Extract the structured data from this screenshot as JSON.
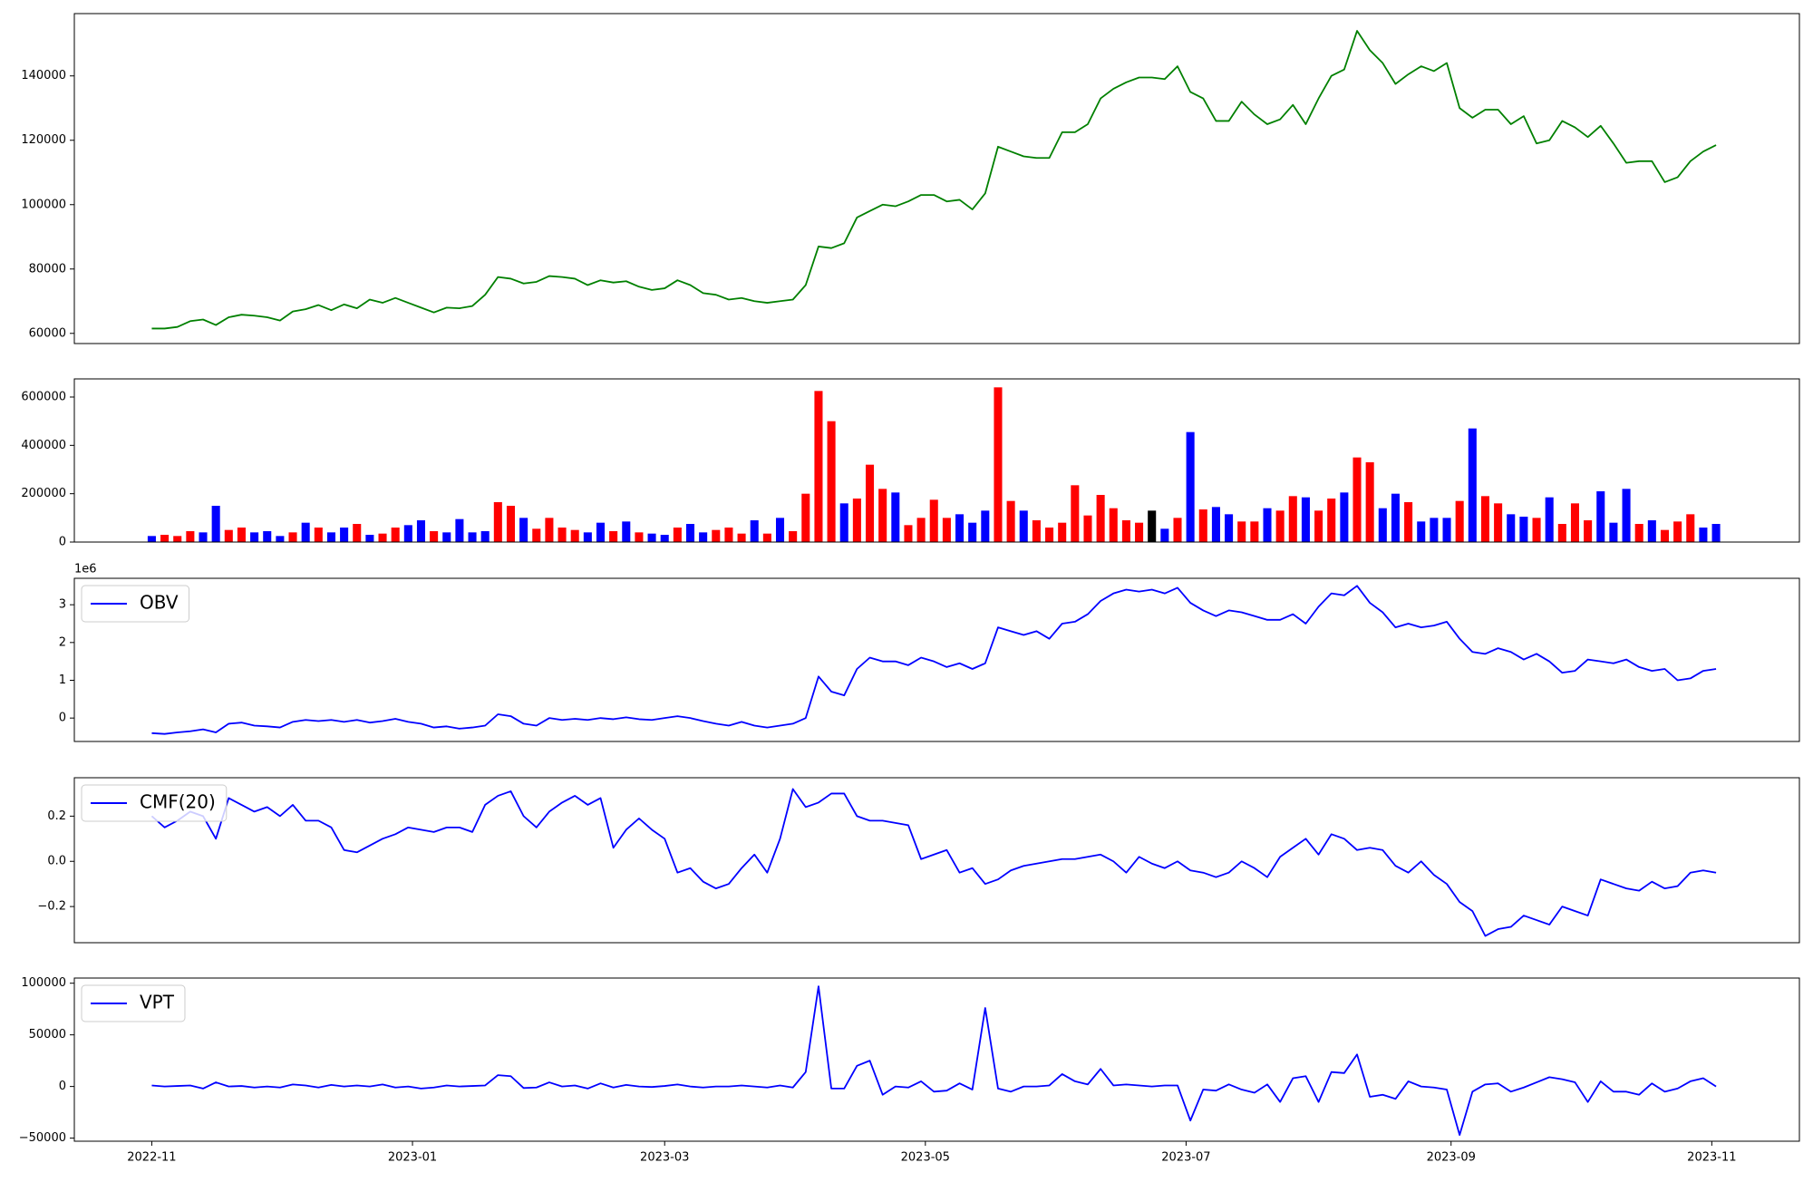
{
  "chart_data": [
    {
      "type": "line",
      "color": "#008000",
      "values": [
        61500,
        61500,
        62000,
        63800,
        64300,
        62600,
        65000,
        65800,
        65500,
        65000,
        64000,
        66800,
        67500,
        68800,
        67200,
        69000,
        67800,
        70500,
        69500,
        71000,
        69500,
        68000,
        66500,
        68000,
        67800,
        68500,
        72000,
        77500,
        77000,
        75500,
        76000,
        77800,
        77500,
        77000,
        75000,
        76500,
        75800,
        76200,
        74500,
        73500,
        74000,
        76500,
        75000,
        72500,
        72000,
        70500,
        71000,
        70000,
        69500,
        70000,
        70500,
        75000,
        87000,
        86500,
        88000,
        96000,
        98000,
        100000,
        99500,
        101000,
        103000,
        103000,
        101000,
        101500,
        98500,
        103500,
        118000,
        116500,
        115000,
        114500,
        114500,
        122500,
        122500,
        125000,
        133000,
        136000,
        138000,
        139500,
        139500,
        139000,
        143000,
        135000,
        133000,
        126000,
        126000,
        132000,
        128000,
        125000,
        126500,
        131000,
        125000,
        133000,
        140000,
        142000,
        154000,
        148000,
        144000,
        137500,
        140500,
        143000,
        141500,
        144000,
        130000,
        127000,
        129500,
        129500,
        125000,
        127500,
        119000,
        120000,
        126000,
        124000,
        121000,
        124500,
        119000,
        113000,
        113500,
        113500,
        107000,
        108500,
        113500,
        116500,
        118500
      ],
      "xlim": [
        -6.04,
        128.5
      ],
      "ylim": [
        56840,
        159360
      ],
      "yticks": [
        60000,
        80000,
        100000,
        120000,
        140000
      ]
    },
    {
      "type": "bar",
      "values": [
        25000,
        30000,
        25000,
        45000,
        40000,
        150000,
        50000,
        60000,
        40000,
        45000,
        25000,
        40000,
        80000,
        60000,
        40000,
        60000,
        75000,
        30000,
        35000,
        60000,
        70000,
        90000,
        45000,
        40000,
        95000,
        40000,
        45000,
        165000,
        150000,
        100000,
        55000,
        100000,
        60000,
        50000,
        40000,
        80000,
        45000,
        85000,
        40000,
        35000,
        30000,
        60000,
        75000,
        40000,
        50000,
        60000,
        35000,
        90000,
        35000,
        100000,
        45000,
        200000,
        625000,
        500000,
        160000,
        180000,
        320000,
        220000,
        205000,
        70000,
        100000,
        175000,
        100000,
        115000,
        80000,
        130000,
        640000,
        170000,
        130000,
        90000,
        60000,
        80000,
        235000,
        110000,
        195000,
        140000,
        90000,
        80000,
        130000,
        55000,
        100000,
        455000,
        135000,
        145000,
        115000,
        85000,
        85000,
        140000,
        130000,
        190000,
        185000,
        130000,
        180000,
        205000,
        350000,
        330000,
        140000,
        200000,
        165000,
        85000,
        100000,
        100000,
        170000,
        470000,
        190000,
        160000,
        115000,
        105000,
        100000,
        185000,
        75000,
        160000,
        90000,
        210000,
        80000,
        220000,
        75000,
        90000,
        50000,
        85000,
        115000,
        60000,
        75000
      ],
      "colors": [
        "blue",
        "red",
        "red",
        "red",
        "blue",
        "blue",
        "red",
        "red",
        "blue",
        "blue",
        "blue",
        "red",
        "blue",
        "red",
        "blue",
        "blue",
        "red",
        "blue",
        "red",
        "red",
        "blue",
        "blue",
        "red",
        "blue",
        "blue",
        "blue",
        "blue",
        "red",
        "red",
        "blue",
        "red",
        "red",
        "red",
        "red",
        "blue",
        "blue",
        "red",
        "blue",
        "red",
        "blue",
        "blue",
        "red",
        "blue",
        "blue",
        "red",
        "red",
        "red",
        "blue",
        "red",
        "blue",
        "red",
        "red",
        "red",
        "red",
        "blue",
        "red",
        "red",
        "red",
        "blue",
        "red",
        "red",
        "red",
        "red",
        "blue",
        "blue",
        "blue",
        "red",
        "red",
        "blue",
        "red",
        "red",
        "red",
        "red",
        "red",
        "red",
        "red",
        "red",
        "red",
        "black",
        "blue",
        "red",
        "blue",
        "red",
        "blue",
        "blue",
        "red",
        "red",
        "blue",
        "red",
        "red",
        "blue",
        "red",
        "red",
        "blue",
        "red",
        "red",
        "blue",
        "blue",
        "red",
        "blue",
        "blue",
        "blue",
        "red",
        "blue",
        "red",
        "red",
        "blue",
        "blue",
        "red",
        "blue",
        "red",
        "red",
        "red",
        "blue",
        "blue",
        "blue",
        "red",
        "blue",
        "red",
        "red",
        "red",
        "blue",
        "blue"
      ],
      "xlim": [
        -6.04,
        128.5
      ],
      "ylim": [
        0,
        675000
      ],
      "yticks": [
        0,
        200000,
        400000,
        600000
      ]
    },
    {
      "type": "line",
      "offset_label": "1e6",
      "legend": "upper left",
      "series": [
        {
          "name": "OBV",
          "color": "#0000ff",
          "values": [
            -400000,
            -420000,
            -380000,
            -350000,
            -300000,
            -380000,
            -150000,
            -120000,
            -200000,
            -220000,
            -250000,
            -100000,
            -50000,
            -80000,
            -50000,
            -100000,
            -50000,
            -120000,
            -80000,
            -20000,
            -100000,
            -150000,
            -250000,
            -220000,
            -280000,
            -250000,
            -200000,
            100000,
            50000,
            -150000,
            -200000,
            0,
            -50000,
            -20000,
            -50000,
            0,
            -30000,
            20000,
            -30000,
            -50000,
            0,
            50000,
            0,
            -80000,
            -150000,
            -200000,
            -100000,
            -200000,
            -250000,
            -200000,
            -150000,
            0,
            1100000,
            700000,
            600000,
            1300000,
            1600000,
            1500000,
            1500000,
            1400000,
            1600000,
            1500000,
            1350000,
            1450000,
            1300000,
            1450000,
            2400000,
            2300000,
            2200000,
            2300000,
            2100000,
            2500000,
            2550000,
            2750000,
            3100000,
            3300000,
            3400000,
            3350000,
            3400000,
            3300000,
            3450000,
            3050000,
            2850000,
            2700000,
            2850000,
            2800000,
            2700000,
            2600000,
            2600000,
            2750000,
            2500000,
            2950000,
            3300000,
            3250000,
            3500000,
            3050000,
            2800000,
            2400000,
            2500000,
            2400000,
            2450000,
            2550000,
            2100000,
            1750000,
            1700000,
            1850000,
            1750000,
            1550000,
            1700000,
            1500000,
            1200000,
            1250000,
            1550000,
            1500000,
            1450000,
            1550000,
            1350000,
            1250000,
            1300000,
            1000000,
            1050000,
            1250000,
            1300000
          ]
        }
      ],
      "xlim": [
        -6.04,
        128.5
      ],
      "ylim": [
        -620000,
        3700000
      ],
      "yticks": [
        {
          "value": 0,
          "label": "0"
        },
        {
          "value": 1000000,
          "label": "1"
        },
        {
          "value": 2000000,
          "label": "2"
        },
        {
          "value": 3000000,
          "label": "3"
        }
      ]
    },
    {
      "type": "line",
      "legend": "upper left",
      "series": [
        {
          "name": "CMF(20)",
          "color": "#0000ff",
          "values": [
            0.2,
            0.15,
            0.18,
            0.22,
            0.2,
            0.1,
            0.28,
            0.25,
            0.22,
            0.24,
            0.2,
            0.25,
            0.18,
            0.18,
            0.15,
            0.05,
            0.04,
            0.07,
            0.1,
            0.12,
            0.15,
            0.14,
            0.13,
            0.15,
            0.15,
            0.13,
            0.25,
            0.29,
            0.31,
            0.2,
            0.15,
            0.22,
            0.26,
            0.29,
            0.25,
            0.28,
            0.06,
            0.14,
            0.19,
            0.14,
            0.1,
            -0.05,
            -0.03,
            -0.09,
            -0.12,
            -0.1,
            -0.03,
            0.03,
            -0.05,
            0.1,
            0.32,
            0.24,
            0.26,
            0.3,
            0.3,
            0.2,
            0.18,
            0.18,
            0.17,
            0.16,
            0.01,
            0.03,
            0.05,
            -0.05,
            -0.03,
            -0.1,
            -0.08,
            -0.04,
            -0.02,
            -0.01,
            0,
            0.01,
            0.01,
            0.02,
            0.03,
            0,
            -0.05,
            0.02,
            -0.01,
            -0.03,
            0,
            -0.04,
            -0.05,
            -0.07,
            -0.05,
            0,
            -0.03,
            -0.07,
            0.02,
            0.06,
            0.1,
            0.03,
            0.12,
            0.1,
            0.05,
            0.06,
            0.05,
            -0.02,
            -0.05,
            0,
            -0.06,
            -0.1,
            -0.18,
            -0.22,
            -0.33,
            -0.3,
            -0.29,
            -0.24,
            -0.26,
            -0.28,
            -0.2,
            -0.22,
            -0.24,
            -0.08,
            -0.1,
            -0.12,
            -0.13,
            -0.09,
            -0.12,
            -0.11,
            -0.05,
            -0.04,
            -0.05
          ]
        }
      ],
      "xlim": [
        -6.04,
        128.5
      ],
      "ylim": [
        -0.36,
        0.37
      ],
      "yticks": [
        {
          "value": -0.2,
          "label": "−0.2"
        },
        {
          "value": 0,
          "label": "0.0"
        },
        0.2
      ]
    },
    {
      "type": "line",
      "legend": "upper left",
      "series": [
        {
          "name": "VPT",
          "color": "#0000ff",
          "values": [
            1000,
            0,
            500,
            1000,
            -2000,
            4000,
            0,
            500,
            -1000,
            0,
            -1000,
            2000,
            1000,
            -1000,
            1500,
            0,
            1000,
            0,
            2000,
            -1000,
            0,
            -2000,
            -1000,
            1000,
            0,
            500,
            1000,
            11000,
            10000,
            -1500,
            -1000,
            4000,
            0,
            1000,
            -2000,
            3000,
            -1000,
            1500,
            0,
            -500,
            500,
            2000,
            0,
            -1000,
            0,
            0,
            1000,
            0,
            -1000,
            1000,
            -1000,
            14000,
            97000,
            -2000,
            -2000,
            20000,
            25000,
            -8000,
            0,
            -1000,
            5000,
            -5000,
            -4000,
            3000,
            -3000,
            76000,
            -2000,
            -5000,
            0,
            0,
            1000,
            12000,
            5000,
            2000,
            17000,
            1000,
            2000,
            1000,
            0,
            1000,
            1000,
            -33000,
            -3000,
            -4000,
            2000,
            -3000,
            -6000,
            2000,
            -15000,
            8000,
            10000,
            -15000,
            14000,
            13000,
            31000,
            -10000,
            -8000,
            -12000,
            5000,
            0,
            -1000,
            -3000,
            -47000,
            -5000,
            2000,
            3000,
            -5000,
            -1000,
            4000,
            9000,
            7000,
            4000,
            -15000,
            5000,
            -5000,
            -5000,
            -8000,
            3000,
            -5000,
            -2000,
            5000,
            8000,
            0
          ]
        }
      ],
      "xlim": [
        -6.04,
        128.5
      ],
      "ylim": [
        -53000,
        105000
      ],
      "yticks": [
        {
          "value": -50000,
          "label": "−50000"
        },
        0,
        50000,
        100000
      ],
      "xticks": [
        {
          "value": 0,
          "label": "2022-11"
        },
        {
          "value": 20.333,
          "label": "2023-01"
        },
        {
          "value": 40,
          "label": "2023-03"
        },
        {
          "value": 60.333,
          "label": "2023-05"
        },
        {
          "value": 80.667,
          "label": "2023-07"
        },
        {
          "value": 101.333,
          "label": "2023-09"
        },
        {
          "value": 121.667,
          "label": "2023-11"
        }
      ]
    }
  ]
}
